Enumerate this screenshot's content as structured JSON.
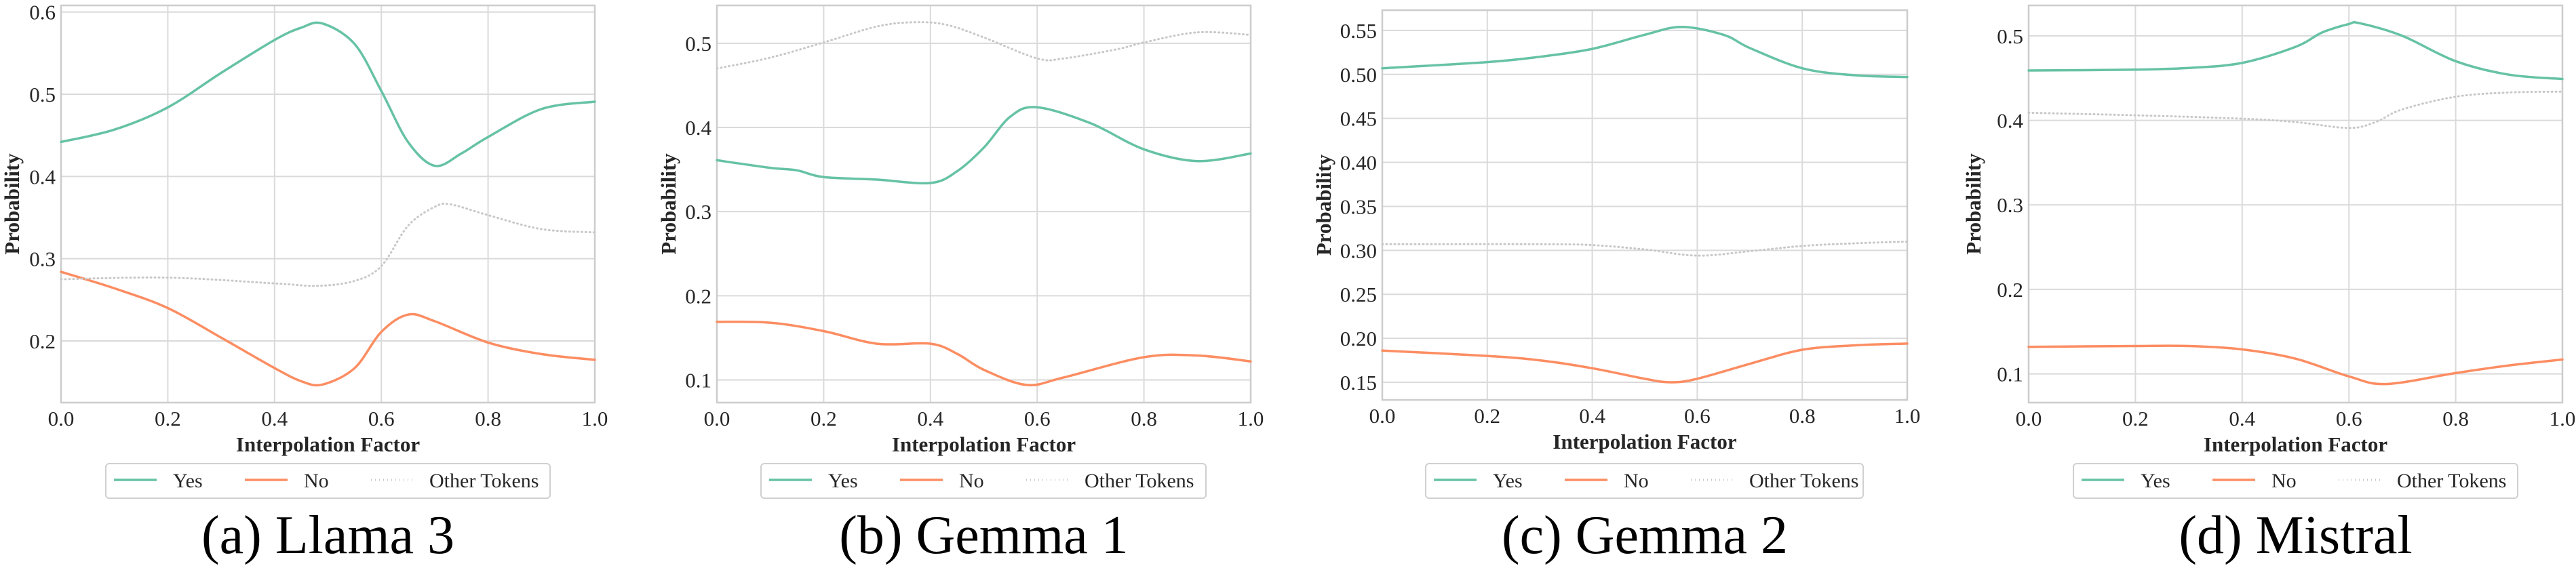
{
  "colors": {
    "Yes": "#66c2a5",
    "No": "#fc8d62",
    "Other Tokens": "#c8c8c8",
    "grid": "#dadada",
    "spine": "#cccccc"
  },
  "chart_data": [
    {
      "type": "line",
      "caption": "(a) Llama 3",
      "xlabel": "Interpolation Factor",
      "ylabel": "Probability",
      "xlim": [
        0,
        1
      ],
      "ylim": [
        0.125,
        0.608
      ],
      "xticks": [
        "0.0",
        "0.2",
        "0.4",
        "0.6",
        "0.8",
        "1.0"
      ],
      "yticks": [
        "0.2",
        "0.3",
        "0.4",
        "0.5",
        "0.6"
      ],
      "grid": true,
      "legend": "bottom",
      "series": [
        {
          "name": "Yes",
          "style": "solid",
          "x": [
            0,
            0.1,
            0.2,
            0.3,
            0.4,
            0.45,
            0.49,
            0.55,
            0.6,
            0.65,
            0.7,
            0.75,
            0.8,
            0.9,
            1.0
          ],
          "y": [
            0.442,
            0.457,
            0.484,
            0.526,
            0.566,
            0.581,
            0.586,
            0.561,
            0.504,
            0.442,
            0.413,
            0.428,
            0.448,
            0.482,
            0.491
          ]
        },
        {
          "name": "No",
          "style": "solid",
          "x": [
            0,
            0.1,
            0.2,
            0.3,
            0.4,
            0.45,
            0.49,
            0.55,
            0.6,
            0.65,
            0.7,
            0.8,
            0.9,
            1.0
          ],
          "y": [
            0.284,
            0.264,
            0.24,
            0.204,
            0.167,
            0.151,
            0.147,
            0.167,
            0.211,
            0.232,
            0.224,
            0.198,
            0.184,
            0.177
          ]
        },
        {
          "name": "Other Tokens",
          "style": "dotted",
          "x": [
            0,
            0.2,
            0.4,
            0.48,
            0.55,
            0.6,
            0.65,
            0.7,
            0.73,
            0.8,
            0.9,
            1.0
          ],
          "y": [
            0.275,
            0.277,
            0.27,
            0.267,
            0.273,
            0.291,
            0.34,
            0.363,
            0.366,
            0.353,
            0.336,
            0.332
          ]
        }
      ]
    },
    {
      "type": "line",
      "caption": "(b) Gemma 1",
      "xlabel": "Interpolation Factor",
      "ylabel": "Probability",
      "xlim": [
        0,
        1
      ],
      "ylim": [
        0.073,
        0.545
      ],
      "xticks": [
        "0.0",
        "0.2",
        "0.4",
        "0.6",
        "0.8",
        "1.0"
      ],
      "yticks": [
        "0.1",
        "0.2",
        "0.3",
        "0.4",
        "0.5"
      ],
      "grid": true,
      "legend": "bottom",
      "series": [
        {
          "name": "Yes",
          "style": "solid",
          "x": [
            0,
            0.1,
            0.15,
            0.2,
            0.3,
            0.4,
            0.45,
            0.5,
            0.55,
            0.6,
            0.7,
            0.8,
            0.9,
            1.0
          ],
          "y": [
            0.361,
            0.352,
            0.349,
            0.341,
            0.338,
            0.334,
            0.348,
            0.376,
            0.413,
            0.424,
            0.405,
            0.374,
            0.36,
            0.369
          ]
        },
        {
          "name": "No",
          "style": "solid",
          "x": [
            0,
            0.1,
            0.2,
            0.3,
            0.4,
            0.45,
            0.5,
            0.58,
            0.65,
            0.8,
            0.9,
            1.0
          ],
          "y": [
            0.169,
            0.168,
            0.158,
            0.143,
            0.143,
            0.131,
            0.112,
            0.094,
            0.103,
            0.127,
            0.129,
            0.122
          ]
        },
        {
          "name": "Other Tokens",
          "style": "dotted",
          "x": [
            0,
            0.1,
            0.2,
            0.3,
            0.37,
            0.43,
            0.5,
            0.6,
            0.65,
            0.75,
            0.8,
            0.9,
            1.0
          ],
          "y": [
            0.47,
            0.483,
            0.501,
            0.52,
            0.525,
            0.522,
            0.507,
            0.482,
            0.482,
            0.493,
            0.501,
            0.513,
            0.51
          ]
        }
      ]
    },
    {
      "type": "line",
      "caption": "(c) Gemma 2",
      "xlabel": "Interpolation Factor",
      "ylabel": "Probability",
      "xlim": [
        0,
        1
      ],
      "ylim": [
        0.13,
        0.573
      ],
      "xticks": [
        "0.0",
        "0.2",
        "0.4",
        "0.6",
        "0.8",
        "1.0"
      ],
      "yticks": [
        "0.15",
        "0.20",
        "0.25",
        "0.30",
        "0.35",
        "0.40",
        "0.45",
        "0.50",
        "0.55"
      ],
      "grid": true,
      "legend": "bottom",
      "series": [
        {
          "name": "Yes",
          "style": "solid",
          "x": [
            0,
            0.2,
            0.3,
            0.4,
            0.5,
            0.57,
            0.65,
            0.7,
            0.8,
            0.9,
            1.0
          ],
          "y": [
            0.507,
            0.514,
            0.52,
            0.529,
            0.545,
            0.554,
            0.545,
            0.53,
            0.507,
            0.499,
            0.497
          ]
        },
        {
          "name": "No",
          "style": "solid",
          "x": [
            0,
            0.2,
            0.3,
            0.4,
            0.5,
            0.55,
            0.6,
            0.7,
            0.8,
            0.9,
            1.0
          ],
          "y": [
            0.186,
            0.18,
            0.175,
            0.166,
            0.154,
            0.15,
            0.154,
            0.171,
            0.187,
            0.192,
            0.194
          ]
        },
        {
          "name": "Other Tokens",
          "style": "dotted",
          "x": [
            0,
            0.3,
            0.4,
            0.5,
            0.6,
            0.7,
            0.8,
            0.9,
            1.0
          ],
          "y": [
            0.307,
            0.307,
            0.306,
            0.301,
            0.294,
            0.299,
            0.305,
            0.308,
            0.31
          ]
        }
      ]
    },
    {
      "type": "line",
      "caption": "(d) Mistral",
      "xlabel": "Interpolation Factor",
      "ylabel": "Probability",
      "xlim": [
        0,
        1
      ],
      "ylim": [
        0.066,
        0.536
      ],
      "xticks": [
        "0.0",
        "0.2",
        "0.4",
        "0.6",
        "0.8",
        "1.0"
      ],
      "yticks": [
        "0.1",
        "0.2",
        "0.3",
        "0.4",
        "0.5"
      ],
      "grid": true,
      "legend": "bottom",
      "series": [
        {
          "name": "Yes",
          "style": "solid",
          "x": [
            0,
            0.2,
            0.3,
            0.4,
            0.5,
            0.55,
            0.6,
            0.62,
            0.7,
            0.8,
            0.9,
            1.0
          ],
          "y": [
            0.459,
            0.46,
            0.462,
            0.468,
            0.487,
            0.504,
            0.514,
            0.515,
            0.5,
            0.47,
            0.454,
            0.449
          ]
        },
        {
          "name": "No",
          "style": "solid",
          "x": [
            0,
            0.2,
            0.3,
            0.4,
            0.5,
            0.6,
            0.67,
            0.8,
            0.9,
            1.0
          ],
          "y": [
            0.132,
            0.133,
            0.133,
            0.129,
            0.118,
            0.097,
            0.088,
            0.101,
            0.11,
            0.117
          ]
        },
        {
          "name": "Other Tokens",
          "style": "dotted",
          "x": [
            0,
            0.2,
            0.4,
            0.5,
            0.6,
            0.65,
            0.7,
            0.8,
            0.9,
            1.0
          ],
          "y": [
            0.409,
            0.406,
            0.402,
            0.398,
            0.391,
            0.398,
            0.413,
            0.428,
            0.433,
            0.434
          ]
        }
      ]
    }
  ]
}
